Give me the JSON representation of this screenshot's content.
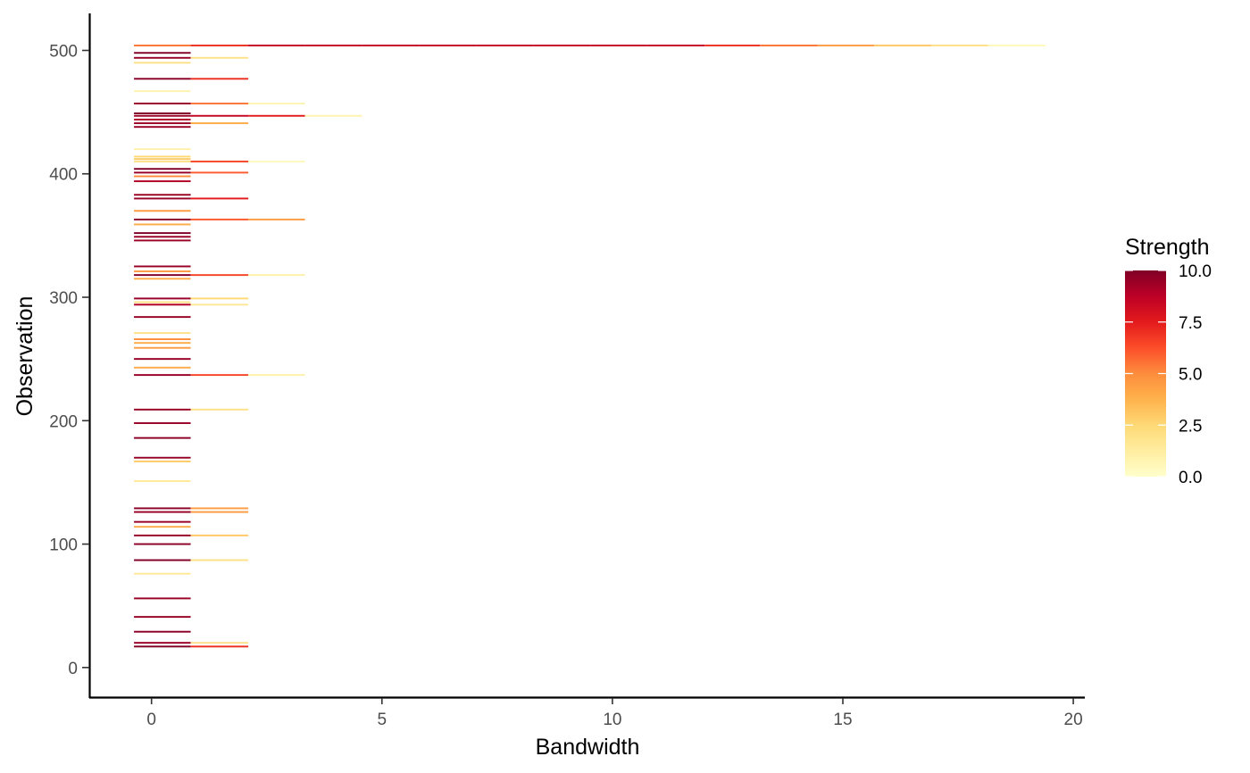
{
  "chart_data": {
    "type": "heatmap",
    "xlabel": "Bandwidth",
    "ylabel": "Observation",
    "xlim": [
      -1.35,
      20.25
    ],
    "ylim": [
      -24,
      530
    ],
    "xticks": [
      0,
      5,
      10,
      15,
      20
    ],
    "yticks": [
      0,
      100,
      200,
      300,
      400,
      500
    ],
    "grid": false,
    "colorbar": {
      "title": "Strength",
      "min": 0.0,
      "max": 10.0,
      "ticks": [
        0.0,
        2.5,
        5.0,
        7.5,
        10.0
      ],
      "tick_labels": [
        "0.0",
        "2.5",
        "5.0",
        "7.5",
        "10.0"
      ],
      "colors": [
        "#FFFFCC",
        "#FFEDA0",
        "#FED976",
        "#FEB24C",
        "#FD8D3C",
        "#FC4E2A",
        "#E31A1C",
        "#BD0026",
        "#800026"
      ]
    },
    "row_height": 1.4,
    "x_bins": [
      [
        -0.38,
        0.85
      ],
      [
        0.85,
        2.1
      ],
      [
        2.1,
        3.33
      ],
      [
        3.33,
        4.57
      ],
      [
        4.57,
        5.8
      ],
      [
        5.8,
        7.05
      ],
      [
        7.05,
        8.28
      ],
      [
        8.28,
        9.52
      ],
      [
        9.52,
        10.75
      ],
      [
        10.75,
        12.0
      ],
      [
        12.0,
        13.2
      ],
      [
        13.2,
        14.45
      ],
      [
        14.45,
        15.68
      ],
      [
        15.68,
        16.92
      ],
      [
        16.92,
        18.15
      ],
      [
        18.15,
        19.4
      ]
    ],
    "rows": [
      {
        "observation": 504,
        "strengths": [
          5.5,
          7.0,
          8.5,
          8.5,
          8.5,
          8.5,
          8.5,
          8.5,
          8.5,
          8.5,
          7.0,
          5.5,
          4.5,
          3.0,
          2.0,
          0.5
        ]
      },
      {
        "observation": 498,
        "strengths": [
          10.0
        ]
      },
      {
        "observation": 494,
        "strengths": [
          9.5,
          2.0
        ]
      },
      {
        "observation": 490,
        "strengths": [
          2.0
        ]
      },
      {
        "observation": 477,
        "strengths": [
          9.8,
          7.0
        ]
      },
      {
        "observation": 467,
        "strengths": [
          0.8
        ]
      },
      {
        "observation": 457,
        "strengths": [
          9.5,
          5.5,
          0.8
        ]
      },
      {
        "observation": 449,
        "strengths": [
          10.0
        ]
      },
      {
        "observation": 447,
        "strengths": [
          9.5,
          8.5,
          7.5,
          0.8
        ]
      },
      {
        "observation": 444,
        "strengths": [
          9.0
        ]
      },
      {
        "observation": 441,
        "strengths": [
          9.5,
          4.0
        ]
      },
      {
        "observation": 438,
        "strengths": [
          9.5
        ]
      },
      {
        "observation": 420,
        "strengths": [
          1.0
        ]
      },
      {
        "observation": 414,
        "strengths": [
          2.5
        ]
      },
      {
        "observation": 412,
        "strengths": [
          3.0
        ]
      },
      {
        "observation": 410,
        "strengths": [
          2.0,
          6.5,
          0.5
        ]
      },
      {
        "observation": 404,
        "strengths": [
          10.0
        ]
      },
      {
        "observation": 401,
        "strengths": [
          9.5,
          6.0
        ]
      },
      {
        "observation": 398,
        "strengths": [
          5.0
        ]
      },
      {
        "observation": 394,
        "strengths": [
          9.0
        ]
      },
      {
        "observation": 383,
        "strengths": [
          9.5
        ]
      },
      {
        "observation": 380,
        "strengths": [
          9.5,
          7.5
        ]
      },
      {
        "observation": 370,
        "strengths": [
          4.5
        ]
      },
      {
        "observation": 363,
        "strengths": [
          9.8,
          6.0,
          4.5
        ]
      },
      {
        "observation": 359,
        "strengths": [
          4.0
        ]
      },
      {
        "observation": 352,
        "strengths": [
          10.0
        ]
      },
      {
        "observation": 349,
        "strengths": [
          9.5
        ]
      },
      {
        "observation": 346,
        "strengths": [
          9.5
        ]
      },
      {
        "observation": 325,
        "strengths": [
          9.5
        ]
      },
      {
        "observation": 321,
        "strengths": [
          4.5
        ]
      },
      {
        "observation": 318,
        "strengths": [
          10.0,
          6.5,
          1.0
        ]
      },
      {
        "observation": 315,
        "strengths": [
          4.0
        ]
      },
      {
        "observation": 299,
        "strengths": [
          9.5,
          2.5
        ]
      },
      {
        "observation": 296,
        "strengths": [
          2.0
        ]
      },
      {
        "observation": 294,
        "strengths": [
          9.0,
          1.5
        ]
      },
      {
        "observation": 284,
        "strengths": [
          9.5
        ]
      },
      {
        "observation": 271,
        "strengths": [
          2.0
        ]
      },
      {
        "observation": 266,
        "strengths": [
          5.0
        ]
      },
      {
        "observation": 263,
        "strengths": [
          4.0
        ]
      },
      {
        "observation": 259,
        "strengths": [
          4.5
        ]
      },
      {
        "observation": 250,
        "strengths": [
          9.5
        ]
      },
      {
        "observation": 243,
        "strengths": [
          4.0
        ]
      },
      {
        "observation": 237,
        "strengths": [
          9.5,
          6.5,
          1.0
        ]
      },
      {
        "observation": 209,
        "strengths": [
          9.5,
          2.0
        ]
      },
      {
        "observation": 198,
        "strengths": [
          9.5
        ]
      },
      {
        "observation": 186,
        "strengths": [
          9.8
        ]
      },
      {
        "observation": 170,
        "strengths": [
          9.5
        ]
      },
      {
        "observation": 167,
        "strengths": [
          3.0
        ]
      },
      {
        "observation": 151,
        "strengths": [
          1.5
        ]
      },
      {
        "observation": 129,
        "strengths": [
          9.8,
          4.5
        ]
      },
      {
        "observation": 126,
        "strengths": [
          9.5,
          4.5
        ]
      },
      {
        "observation": 118,
        "strengths": [
          9.5
        ]
      },
      {
        "observation": 114,
        "strengths": [
          4.0
        ]
      },
      {
        "observation": 107,
        "strengths": [
          9.5,
          3.0
        ]
      },
      {
        "observation": 100,
        "strengths": [
          9.8
        ]
      },
      {
        "observation": 87,
        "strengths": [
          10.0,
          2.0
        ]
      },
      {
        "observation": 76,
        "strengths": [
          1.5
        ]
      },
      {
        "observation": 56,
        "strengths": [
          9.5
        ]
      },
      {
        "observation": 41,
        "strengths": [
          9.5
        ]
      },
      {
        "observation": 29,
        "strengths": [
          9.8
        ]
      },
      {
        "observation": 20,
        "strengths": [
          9.5,
          2.0
        ]
      },
      {
        "observation": 17,
        "strengths": [
          10.0,
          7.0
        ]
      }
    ]
  }
}
